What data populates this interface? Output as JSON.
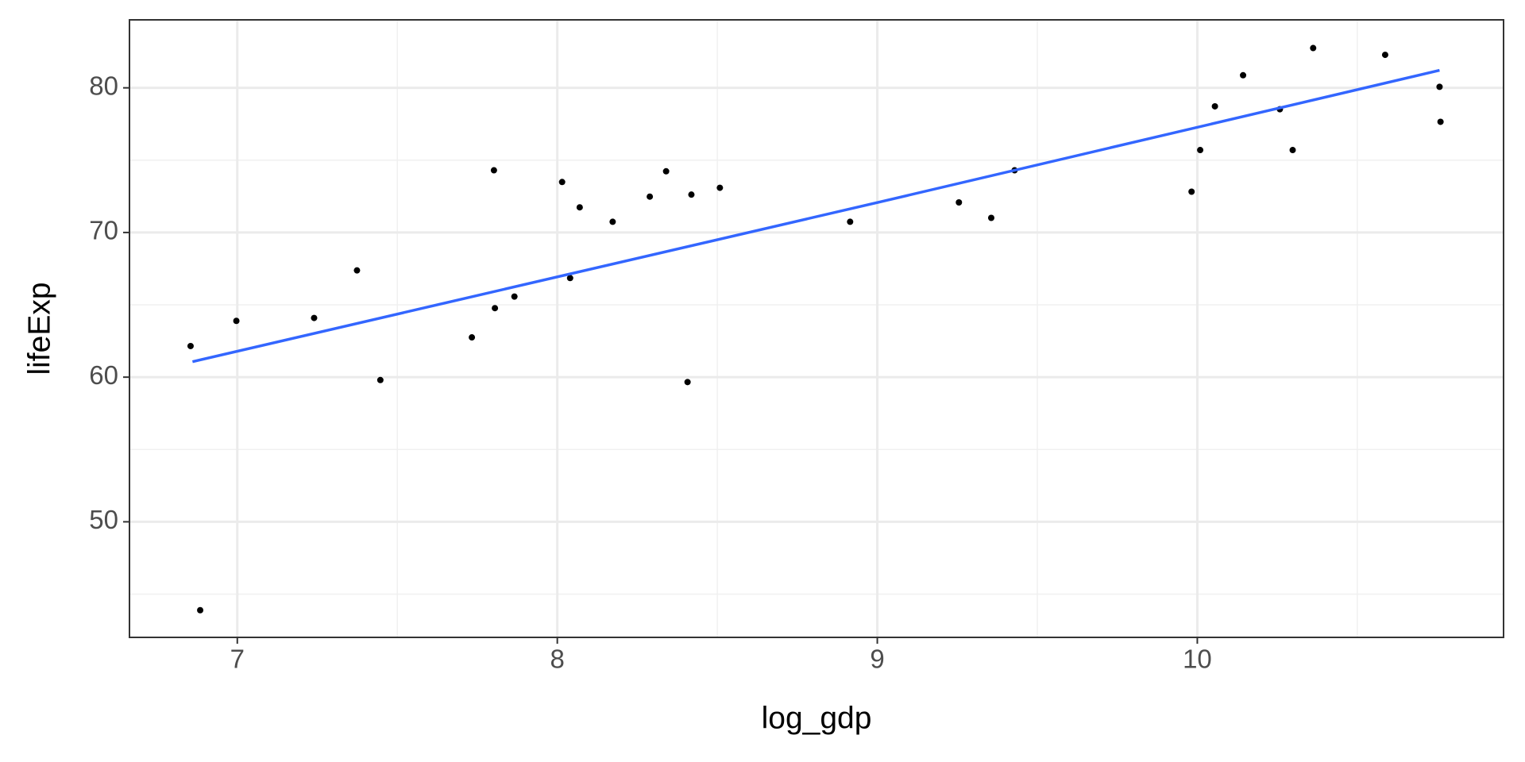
{
  "chart_data": {
    "type": "scatter",
    "x_label": "log_gdp",
    "y_label": "lifeExp",
    "x": [
      6.854,
      6.884,
      6.997,
      7.24,
      7.374,
      7.447,
      7.733,
      7.802,
      7.805,
      7.866,
      8.015,
      8.04,
      8.07,
      8.173,
      8.289,
      8.34,
      8.407,
      8.419,
      8.508,
      8.915,
      9.255,
      9.356,
      9.429,
      9.982,
      10.009,
      10.055,
      10.143,
      10.258,
      10.298,
      10.362,
      10.587,
      10.757,
      10.76
    ],
    "values": [
      62.15,
      43.89,
      63.89,
      64.09,
      67.38,
      59.8,
      62.75,
      74.3,
      64.77,
      65.57,
      73.49,
      66.85,
      71.74,
      70.74,
      72.48,
      74.23,
      59.66,
      72.62,
      73.09,
      70.74,
      72.08,
      71.01,
      74.3,
      72.82,
      75.7,
      78.72,
      80.87,
      78.52,
      75.7,
      82.75,
      82.28,
      80.07,
      77.65
    ],
    "color": "#000000",
    "fit": {
      "x": [
        6.86,
        9.0,
        10.757
      ],
      "values": [
        61.07,
        72.07,
        81.21
      ],
      "color": "#3366ff"
    },
    "xlim": [
      6.663,
      10.957
    ],
    "ylim": [
      42.01,
      84.7
    ],
    "xticks": [
      7,
      8,
      9,
      10
    ],
    "yticks": [
      50,
      60,
      70,
      80
    ],
    "minor_xticks": [
      7.5,
      8.5,
      9.5,
      10.5
    ],
    "minor_yticks": [
      45,
      55,
      65,
      75
    ],
    "grid": true
  }
}
